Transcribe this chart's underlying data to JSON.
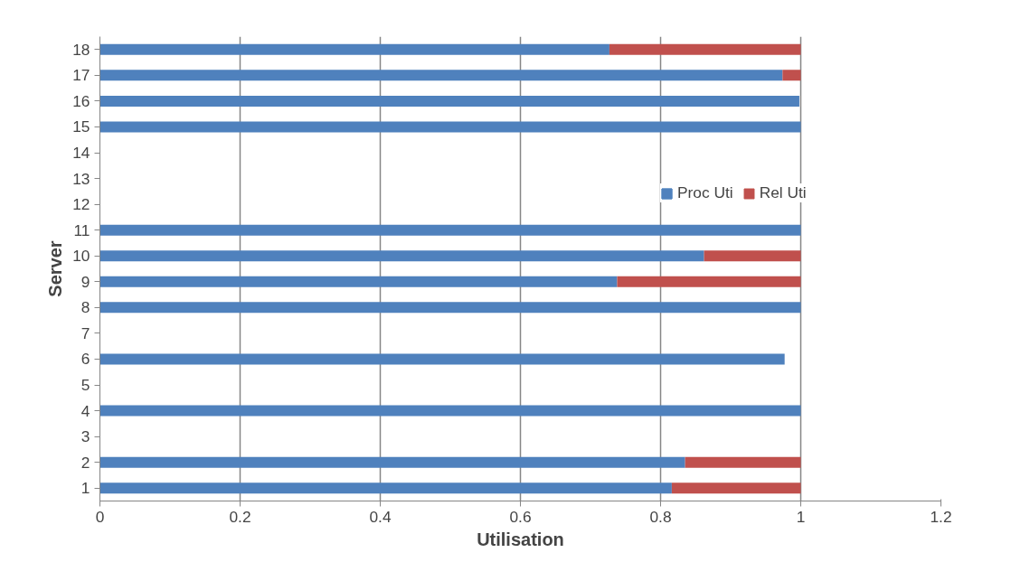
{
  "chart_data": {
    "type": "bar",
    "orientation": "horizontal",
    "stacked": true,
    "xlabel": "Utilisation",
    "ylabel": "Server",
    "categories": [
      "18",
      "17",
      "16",
      "15",
      "14",
      "13",
      "12",
      "11",
      "10",
      "9",
      "8",
      "7",
      "6",
      "5",
      "4",
      "3",
      "2",
      "1"
    ],
    "series": [
      {
        "name": "Proc Uti",
        "color": "#4f81bd",
        "values": [
          0.727,
          0.974,
          0.998,
          1,
          null,
          null,
          null,
          1,
          0.862,
          0.738,
          1,
          null,
          0.977,
          null,
          1,
          null,
          0.835,
          0.816
        ]
      },
      {
        "name": "Rel Uti",
        "color": "#c0504d",
        "values": [
          0.273,
          0.026,
          null,
          null,
          null,
          null,
          null,
          null,
          0.138,
          0.262,
          null,
          null,
          null,
          null,
          null,
          null,
          0.165,
          0.184
        ]
      }
    ],
    "xlim": [
      0,
      1.2
    ],
    "xticks": [
      0,
      0.2,
      0.4,
      0.6,
      0.8,
      1,
      1.2
    ],
    "grid": "x",
    "legend": "right"
  }
}
